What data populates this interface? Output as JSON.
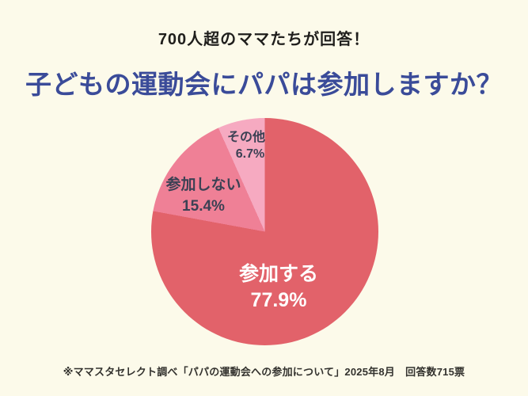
{
  "page": {
    "background_color": "#fcfaea"
  },
  "header": {
    "subtitle": "700人超のママたちが回答！",
    "title": "子どもの運動会にパパは参加しますか？",
    "title_color": "#3a4b99",
    "subtitle_color": "#1f1e1c"
  },
  "chart_data": {
    "type": "pie",
    "title": "子どもの運動会にパパは参加しますか？",
    "start_angle_deg": 0,
    "direction": "clockwise",
    "legend_position": "labels-on-slices",
    "slices": [
      {
        "label": "参加する",
        "value_pct": 77.9,
        "display": "77.9%",
        "color": "#e2626a",
        "label_color": "#ffffff"
      },
      {
        "label": "参加しない",
        "value_pct": 15.4,
        "display": "15.4%",
        "color": "#ef8096",
        "label_color": "#3c4154"
      },
      {
        "label": "その他",
        "value_pct": 6.7,
        "display": "6.7%",
        "color": "#f6aac1",
        "label_color": "#3c4154"
      }
    ]
  },
  "footer": {
    "source_note": "※ママスタセレクト調べ「パパの運動会への参加について」2025年8月　回答数715票"
  }
}
